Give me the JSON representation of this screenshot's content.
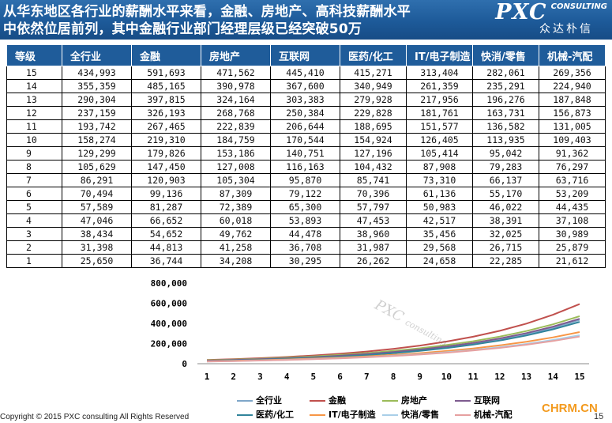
{
  "title": "从华东地区各行业的薪酬水平来看，金融、房地产、高科技薪酬水平\n中依然位居前列，其中金融行业部门经理层级已经突破50万",
  "brand": {
    "mark": "PXC",
    "sub": "CONSULTING",
    "cn": "众达朴信"
  },
  "watermark": {
    "mark": "PXC",
    "sub": "consulting"
  },
  "table": {
    "headers": [
      "等级",
      "全行业",
      "金融",
      "房地产",
      "互联网",
      "医药/化工",
      "IT/电子制造",
      "快消/零售",
      "机械-汽配"
    ],
    "rows": [
      [
        "15",
        "434,993",
        "591,693",
        "471,562",
        "445,410",
        "415,271",
        "313,404",
        "282,061",
        "269,356"
      ],
      [
        "14",
        "355,359",
        "485,165",
        "390,978",
        "367,600",
        "340,949",
        "261,359",
        "235,291",
        "224,940"
      ],
      [
        "13",
        "290,304",
        "397,815",
        "324,164",
        "303,383",
        "279,928",
        "217,956",
        "196,276",
        "187,848"
      ],
      [
        "12",
        "237,159",
        "326,193",
        "268,768",
        "250,384",
        "229,828",
        "181,761",
        "163,731",
        "156,873"
      ],
      [
        "11",
        "193,742",
        "267,465",
        "222,839",
        "206,644",
        "188,695",
        "151,577",
        "136,582",
        "131,005"
      ],
      [
        "10",
        "158,274",
        "219,310",
        "184,759",
        "170,544",
        "154,924",
        "126,405",
        "113,935",
        "109,403"
      ],
      [
        "9",
        "129,299",
        "179,826",
        "153,186",
        "140,751",
        "127,196",
        "105,414",
        "95,042",
        "91,362"
      ],
      [
        "8",
        "105,629",
        "147,450",
        "127,008",
        "116,163",
        "104,432",
        "87,908",
        "79,283",
        "76,297"
      ],
      [
        "7",
        "86,291",
        "120,903",
        "105,304",
        "95,870",
        "85,741",
        "73,310",
        "66,137",
        "63,716"
      ],
      [
        "6",
        "70,494",
        "99,136",
        "87,309",
        "79,122",
        "70,396",
        "61,136",
        "55,170",
        "53,209"
      ],
      [
        "5",
        "57,589",
        "81,287",
        "72,389",
        "65,300",
        "57,797",
        "50,983",
        "46,022",
        "44,435"
      ],
      [
        "4",
        "47,046",
        "66,652",
        "60,018",
        "53,893",
        "47,453",
        "42,517",
        "38,391",
        "37,108"
      ],
      [
        "3",
        "38,434",
        "54,652",
        "49,762",
        "44,478",
        "38,960",
        "35,456",
        "32,025",
        "30,989"
      ],
      [
        "2",
        "31,398",
        "44,813",
        "41,258",
        "36,708",
        "31,987",
        "29,568",
        "26,715",
        "25,879"
      ],
      [
        "1",
        "25,650",
        "36,744",
        "34,208",
        "30,295",
        "26,262",
        "24,658",
        "22,285",
        "21,612"
      ]
    ]
  },
  "chart_data": {
    "type": "line",
    "x": [
      1,
      2,
      3,
      4,
      5,
      6,
      7,
      8,
      9,
      10,
      11,
      12,
      13,
      14,
      15
    ],
    "ylim": [
      0,
      800000
    ],
    "yticks": [
      "0",
      "200,000",
      "400,000",
      "600,000",
      "800,000"
    ],
    "ytick_values": [
      0,
      200000,
      400000,
      600000,
      800000
    ],
    "grid": false,
    "legend_position": "bottom",
    "series": [
      {
        "name": "全行业",
        "color": "#7fa7c9",
        "values": [
          25650,
          31398,
          38434,
          47046,
          57589,
          70494,
          86291,
          105629,
          129299,
          158274,
          193742,
          237159,
          290304,
          355359,
          434993
        ]
      },
      {
        "name": "金融",
        "color": "#c0504d",
        "values": [
          36744,
          44813,
          54652,
          66652,
          81287,
          99136,
          120903,
          147450,
          179826,
          219310,
          267465,
          326193,
          397815,
          485165,
          591693
        ]
      },
      {
        "name": "房地产",
        "color": "#9bbb59",
        "values": [
          34208,
          41258,
          49762,
          60018,
          72389,
          87309,
          105304,
          127008,
          153186,
          184759,
          222839,
          268768,
          324164,
          390978,
          471562
        ]
      },
      {
        "name": "互联网",
        "color": "#7e5b8f",
        "values": [
          30295,
          36708,
          44478,
          53893,
          65300,
          79122,
          95870,
          116163,
          140751,
          170544,
          206644,
          250384,
          303383,
          367600,
          445410
        ]
      },
      {
        "name": "医药/化工",
        "color": "#31849b",
        "values": [
          26262,
          31987,
          38960,
          47453,
          57797,
          70396,
          85741,
          104432,
          127196,
          154924,
          188695,
          229828,
          279928,
          340949,
          415271
        ]
      },
      {
        "name": "IT/电子制造",
        "color": "#f79646",
        "values": [
          24658,
          29568,
          35456,
          42517,
          50983,
          61136,
          73310,
          87908,
          105414,
          126405,
          151577,
          181761,
          217956,
          261359,
          313404
        ]
      },
      {
        "name": "快消/零售",
        "color": "#a9cfe8",
        "values": [
          22285,
          26715,
          32025,
          38391,
          46022,
          55170,
          66137,
          79283,
          95042,
          113935,
          136582,
          163731,
          196276,
          235291,
          282061
        ]
      },
      {
        "name": "机械-汽配",
        "color": "#e6a0a0",
        "values": [
          21612,
          25879,
          30989,
          37108,
          44435,
          53209,
          63716,
          76297,
          91362,
          109403,
          131005,
          156873,
          187848,
          224940,
          269356
        ]
      }
    ]
  },
  "footer": {
    "copyright": "Copyright © 2015 PXC consulting All Rights Reserved",
    "site": "CHRM.CN",
    "page": "15"
  }
}
